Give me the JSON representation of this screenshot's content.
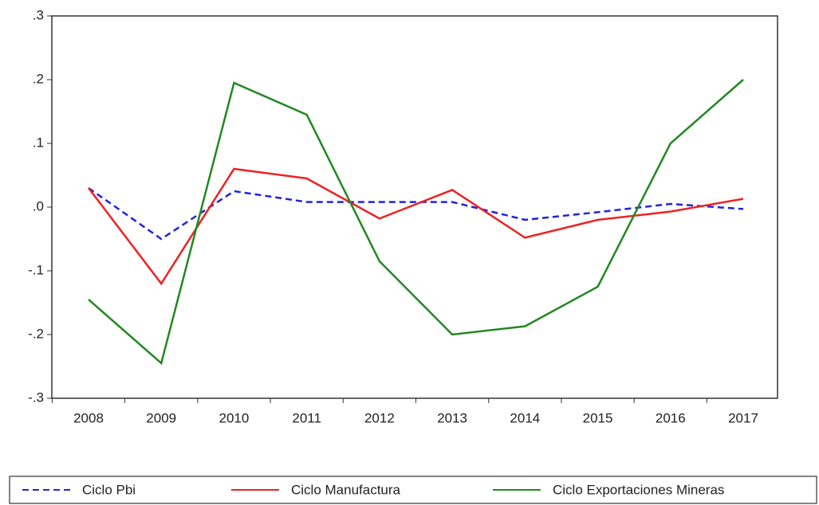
{
  "chart_data": {
    "type": "line",
    "categories": [
      "2008",
      "2009",
      "2010",
      "2011",
      "2012",
      "2013",
      "2014",
      "2015",
      "2016",
      "2017"
    ],
    "series": [
      {
        "name": "Ciclo Pbi",
        "color": "#2222dd",
        "dashed": true,
        "values": [
          0.03,
          -0.05,
          0.025,
          0.008,
          0.008,
          0.008,
          -0.02,
          -0.008,
          0.005,
          -0.003
        ]
      },
      {
        "name": "Ciclo Manufactura",
        "color": "#ee2222",
        "dashed": false,
        "values": [
          0.03,
          -0.12,
          0.06,
          0.045,
          -0.018,
          0.027,
          -0.048,
          -0.02,
          -0.007,
          0.013
        ]
      },
      {
        "name": "Ciclo Exportaciones Mineras",
        "color": "#228822",
        "dashed": false,
        "values": [
          -0.145,
          -0.245,
          0.195,
          0.145,
          -0.085,
          -0.2,
          -0.187,
          -0.125,
          0.1,
          0.2
        ]
      }
    ],
    "ylim": [
      -0.3,
      0.3
    ],
    "yticks": [
      {
        "value": 0.3,
        "label": ".3"
      },
      {
        "value": 0.2,
        "label": ".2"
      },
      {
        "value": 0.1,
        "label": ".1"
      },
      {
        "value": 0,
        "label": ".0"
      },
      {
        "value": -0.1,
        "label": "-.1"
      },
      {
        "value": -0.2,
        "label": "-.2"
      },
      {
        "value": -0.3,
        "label": "-.3"
      }
    ],
    "grid": false,
    "legend": "bottom"
  }
}
